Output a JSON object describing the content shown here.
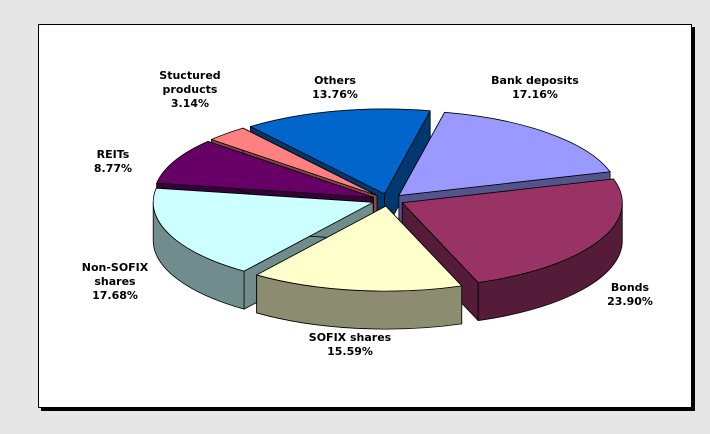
{
  "chart_data": {
    "type": "pie3d",
    "categories": [
      "Bank deposits",
      "Bonds",
      "SOFIX shares",
      "Non-SOFIX shares",
      "REITs",
      "Stuctured products",
      "Others"
    ],
    "values": [
      17.16,
      23.9,
      15.59,
      17.68,
      8.77,
      3.14,
      13.76
    ],
    "value_labels": [
      "17.16%",
      "23.90%",
      "15.59%",
      "17.68%",
      "8.77%",
      "3.14%",
      "13.76%"
    ],
    "colors": [
      "#9999ff",
      "#993366",
      "#ffffcc",
      "#ccffff",
      "#660066",
      "#ff8080",
      "#0066cc"
    ]
  }
}
